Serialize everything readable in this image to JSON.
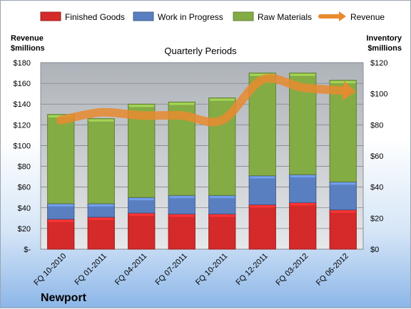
{
  "chart_data": {
    "type": "bar",
    "stacked": true,
    "title": "",
    "subtitle": "Quarterly Periods",
    "company": "Newport",
    "categories": [
      "FQ 10-2010",
      "FQ 01-2011",
      "FQ 04-2011",
      "FQ 07-2011",
      "FQ 10-2011",
      "FQ 12-2011",
      "FQ 03-2012",
      "FQ 06-2012"
    ],
    "series": [
      {
        "name": "Finished Goods",
        "axis": "left",
        "color": "#d42a2a",
        "values": [
          29,
          31,
          35,
          34,
          34,
          43,
          45,
          38
        ]
      },
      {
        "name": "Work in Progress",
        "axis": "left",
        "color": "#5a7fc0",
        "values": [
          15,
          13,
          15,
          18,
          18,
          28,
          27,
          27
        ]
      },
      {
        "name": "Raw Materials",
        "axis": "left",
        "color": "#84ac45",
        "values": [
          86,
          82,
          90,
          90,
          94,
          99,
          98,
          98
        ]
      },
      {
        "name": "Revenue",
        "axis": "right",
        "type": "line",
        "color": "#e98a2f",
        "values": [
          83,
          88,
          86,
          86,
          83,
          109,
          104,
          102
        ]
      }
    ],
    "left_axis": {
      "label": "Revenue $millions",
      "label_lines": [
        "Revenue",
        "$millions"
      ],
      "ylim": [
        0,
        180
      ],
      "ticks": [
        "$-",
        "$20",
        "$40",
        "$60",
        "$80",
        "$100",
        "$120",
        "$140",
        "$160",
        "$180"
      ]
    },
    "right_axis": {
      "label": "Inventory $millions",
      "label_lines": [
        "Inventory",
        "$millions"
      ],
      "ylim": [
        0,
        120
      ],
      "ticks": [
        "$0",
        "$20",
        "$40",
        "$60",
        "$80",
        "$100",
        "$120"
      ]
    },
    "legend_position": "top",
    "grid": true
  }
}
